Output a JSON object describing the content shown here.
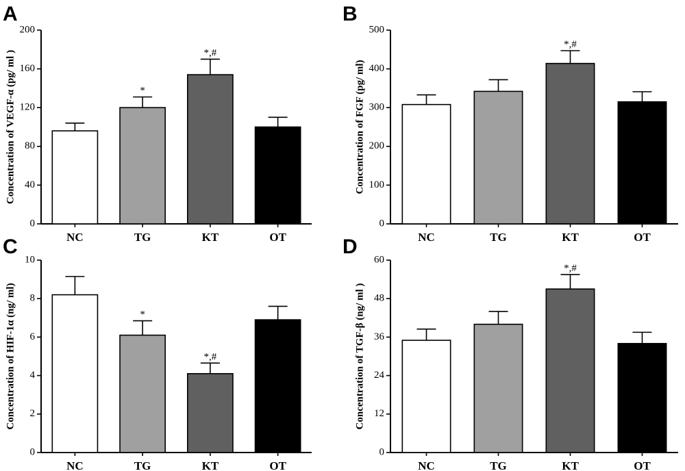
{
  "colors": {
    "NC": "#ffffff",
    "TG": "#a0a0a0",
    "KT": "#606060",
    "OT": "#000000"
  },
  "chart_data": [
    {
      "panel": "A",
      "type": "bar",
      "categories": [
        "NC",
        "TG",
        "KT",
        "OT"
      ],
      "values": [
        96,
        120,
        154,
        100
      ],
      "errors": [
        8,
        11,
        16,
        10
      ],
      "annotations": [
        "",
        "*",
        "*,#",
        ""
      ],
      "ylabel": "Concentration of VEGF-α (pg/ ml )",
      "ylim": [
        0,
        200
      ],
      "yticks": [
        0,
        40,
        80,
        120,
        160,
        200
      ]
    },
    {
      "panel": "B",
      "type": "bar",
      "categories": [
        "NC",
        "TG",
        "KT",
        "OT"
      ],
      "values": [
        308,
        342,
        414,
        315
      ],
      "errors": [
        25,
        30,
        33,
        26
      ],
      "annotations": [
        "",
        "",
        "*,#",
        ""
      ],
      "ylabel": "Concentration of FGF (pg/ ml)",
      "ylim": [
        0,
        500
      ],
      "yticks": [
        0,
        100,
        200,
        300,
        400,
        500
      ]
    },
    {
      "panel": "C",
      "type": "bar",
      "categories": [
        "NC",
        "TG",
        "KT",
        "OT"
      ],
      "values": [
        8.2,
        6.1,
        4.1,
        6.9
      ],
      "errors": [
        0.95,
        0.75,
        0.55,
        0.7
      ],
      "annotations": [
        "",
        "*",
        "*,#",
        ""
      ],
      "ylabel": "Concentration of HIF-1α (ng/ ml)",
      "ylim": [
        0,
        10
      ],
      "yticks": [
        0,
        2,
        4,
        6,
        8,
        10
      ]
    },
    {
      "panel": "D",
      "type": "bar",
      "categories": [
        "NC",
        "TG",
        "KT",
        "OT"
      ],
      "values": [
        35,
        40,
        51,
        34
      ],
      "errors": [
        3.5,
        4.0,
        4.5,
        3.5
      ],
      "annotations": [
        "",
        "",
        "*,#",
        ""
      ],
      "ylabel": "Concentration of TGF-β (ng/ ml )",
      "ylim": [
        0,
        60
      ],
      "yticks": [
        0,
        12,
        24,
        36,
        48,
        60
      ]
    }
  ]
}
